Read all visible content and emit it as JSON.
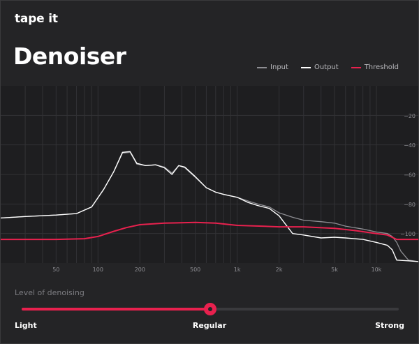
{
  "app": {
    "brand": "tape it",
    "title": "Denoiser"
  },
  "legend": {
    "items": [
      {
        "label": "Input",
        "color": "#8e8e93"
      },
      {
        "label": "Output",
        "color": "#ffffff"
      },
      {
        "label": "Threshold",
        "color": "#e8214e"
      }
    ]
  },
  "chart_data": {
    "type": "line",
    "x_scale": "log",
    "xlim": [
      20,
      20000
    ],
    "ylim": [
      -120,
      0
    ],
    "grid": true,
    "legend_position": "top-right",
    "x_ticks": [
      {
        "value": 50,
        "label": "50"
      },
      {
        "value": 100,
        "label": "100"
      },
      {
        "value": 200,
        "label": "200"
      },
      {
        "value": 500,
        "label": "500"
      },
      {
        "value": 1000,
        "label": "1k"
      },
      {
        "value": 2000,
        "label": "2k"
      },
      {
        "value": 5000,
        "label": "5k"
      },
      {
        "value": 10000,
        "label": "10k"
      }
    ],
    "y_ticks": [
      {
        "value": -20,
        "label": "−20"
      },
      {
        "value": -40,
        "label": "−40"
      },
      {
        "value": -60,
        "label": "−60"
      },
      {
        "value": -80,
        "label": "−80"
      },
      {
        "value": -100,
        "label": "−100"
      }
    ],
    "series": [
      {
        "name": "Input",
        "color": "#8e8e93",
        "x": [
          20,
          30,
          50,
          70,
          90,
          110,
          130,
          150,
          170,
          190,
          220,
          260,
          300,
          340,
          380,
          420,
          500,
          600,
          700,
          800,
          1000,
          1200,
          1400,
          1700,
          2000,
          2500,
          3000,
          4000,
          5000,
          6000,
          8000,
          10000,
          12000,
          13000,
          14000,
          15000,
          17000,
          20000
        ],
        "y": [
          -89.5,
          -88.5,
          -87.5,
          -86.5,
          -82,
          -70,
          -58,
          -45.5,
          -45,
          -53,
          -54,
          -53.5,
          -55,
          -59,
          -54,
          -55.5,
          -62,
          -69,
          -72,
          -73.5,
          -75.5,
          -78,
          -80,
          -82,
          -86,
          -89,
          -91,
          -92,
          -93,
          -95,
          -97,
          -99,
          -100,
          -102,
          -106,
          -112,
          -118,
          -119
        ]
      },
      {
        "name": "Output",
        "color": "#ffffff",
        "x": [
          20,
          30,
          50,
          70,
          90,
          110,
          130,
          150,
          170,
          190,
          220,
          260,
          300,
          340,
          380,
          420,
          500,
          600,
          700,
          800,
          1000,
          1200,
          1400,
          1700,
          2000,
          2500,
          3000,
          4000,
          5000,
          6000,
          8000,
          10000,
          12000,
          13000,
          14000,
          17000,
          20000
        ],
        "y": [
          -89.5,
          -88.5,
          -87.5,
          -86.5,
          -82,
          -70,
          -58,
          -45,
          -44.5,
          -52.5,
          -54,
          -53.5,
          -55.5,
          -60,
          -54,
          -55,
          -61.5,
          -69,
          -72,
          -73.5,
          -75.5,
          -79,
          -81,
          -83,
          -88,
          -100,
          -101,
          -103,
          -102.5,
          -103,
          -104,
          -106,
          -108,
          -111,
          -118,
          -118.5,
          -119
        ]
      },
      {
        "name": "Threshold",
        "color": "#e8214e",
        "x": [
          20,
          50,
          80,
          100,
          130,
          160,
          200,
          300,
          500,
          700,
          1000,
          1500,
          2000,
          3000,
          5000,
          7000,
          10000,
          12000,
          14000,
          17000,
          20000
        ],
        "y": [
          -104,
          -104,
          -103.5,
          -102,
          -98.5,
          -96,
          -94,
          -93,
          -92.5,
          -93,
          -94.5,
          -95,
          -95.5,
          -95.5,
          -96.5,
          -98,
          -100,
          -101,
          -104,
          -104,
          -104
        ]
      }
    ]
  },
  "denoise": {
    "label": "Level of denoising",
    "value": 0.5,
    "stops": [
      "Light",
      "Regular",
      "Strong"
    ],
    "accent": "#e8214e"
  }
}
